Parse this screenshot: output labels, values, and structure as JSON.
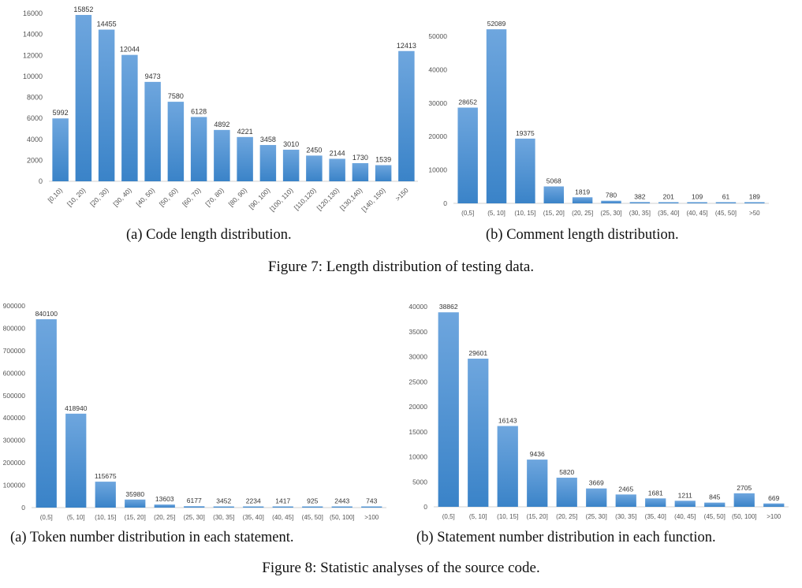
{
  "colors": {
    "bar_top": "#6ea6de",
    "bar_bottom": "#3a83c8",
    "axis_text": "#555555",
    "baseline": "#d0d0d0"
  },
  "chart_data": [
    {
      "type": "bar",
      "caption": "(a) Code length distribution.",
      "categories": [
        "[0,10)",
        "[10, 20)",
        "[20, 30)",
        "[30, 40)",
        "[40, 50)",
        "[50, 60)",
        "[60, 70)",
        "[70, 80)",
        "[80, 90)",
        "[90, 100)",
        "[100, 110)",
        "[110,120)",
        "[120,130)",
        "[130,140)",
        "[140, 150)",
        ">150"
      ],
      "values": [
        5992,
        15852,
        14455,
        12044,
        9473,
        7580,
        6128,
        4892,
        4221,
        3458,
        3010,
        2450,
        2144,
        1730,
        1539,
        12413
      ],
      "ylim": [
        0,
        16000
      ],
      "yticks": [
        0,
        2000,
        4000,
        6000,
        8000,
        10000,
        12000,
        14000,
        16000
      ],
      "xlabel": "",
      "ylabel": "",
      "grid": false,
      "rotated_labels": true
    },
    {
      "type": "bar",
      "caption": "(b) Comment length distribution.",
      "categories": [
        "(0,5]",
        "(5, 10]",
        "(10, 15]",
        "(15, 20]",
        "(20, 25]",
        "(25, 30]",
        "(30, 35]",
        "(35, 40]",
        "(40, 45]",
        "(45, 50]",
        ">50"
      ],
      "values": [
        28652,
        52089,
        19375,
        5068,
        1819,
        780,
        382,
        201,
        109,
        61,
        189
      ],
      "ylim": [
        0,
        50000
      ],
      "yticks": [
        0,
        10000,
        20000,
        30000,
        40000,
        50000
      ],
      "xlabel": "",
      "ylabel": "",
      "grid": false,
      "rotated_labels": false
    },
    {
      "type": "bar",
      "caption": "(a) Token number distribution in each statement.",
      "categories": [
        "(0,5]",
        "(5, 10]",
        "(10, 15]",
        "(15, 20]",
        "(20, 25]",
        "(25, 30]",
        "(30, 35]",
        "(35, 40]",
        "(40, 45]",
        "(45, 50]",
        "(50, 100]",
        ">100"
      ],
      "values": [
        840100,
        418940,
        115675,
        35980,
        13603,
        6177,
        3452,
        2234,
        1417,
        925,
        2443,
        743
      ],
      "ylim": [
        0,
        900000
      ],
      "yticks": [
        0,
        100000,
        200000,
        300000,
        400000,
        500000,
        600000,
        700000,
        800000,
        900000
      ],
      "xlabel": "",
      "ylabel": "",
      "grid": false,
      "rotated_labels": false
    },
    {
      "type": "bar",
      "caption": "(b) Statement number distribution in each function.",
      "categories": [
        "(0,5]",
        "(5, 10]",
        "(10, 15]",
        "(15, 20]",
        "(20, 25]",
        "(25, 30]",
        "(30, 35]",
        "(35, 40]",
        "(40, 45]",
        "(45, 50]",
        "(50, 100]",
        ">100"
      ],
      "values": [
        38862,
        29601,
        16143,
        9436,
        5820,
        3669,
        2465,
        1681,
        1211,
        845,
        2705,
        669
      ],
      "ylim": [
        0,
        40000
      ],
      "yticks": [
        0,
        5000,
        10000,
        15000,
        20000,
        25000,
        30000,
        35000,
        40000
      ],
      "xlabel": "",
      "ylabel": "",
      "grid": false,
      "rotated_labels": false
    }
  ],
  "figures": {
    "fig7": "Figure 7: Length distribution of testing data.",
    "fig8": "Figure 8: Statistic analyses of the source code."
  }
}
